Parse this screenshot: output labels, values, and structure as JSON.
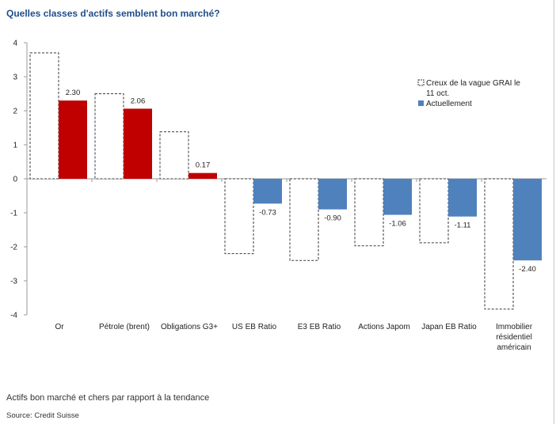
{
  "title": "Quelles classes d'actifs semblent bon marché?",
  "caption": "Actifs bon marché et chers par rapport à la tendance",
  "source": "Source: Credit Suisse",
  "chart_data": {
    "type": "bar",
    "categories": [
      "Or",
      "Pétrole (brent)",
      "Obligations G3+",
      "US EB Ratio",
      "E3 EB Ratio",
      "Actions Japom",
      "Japan EB Ratio",
      "Immobilier résidentiel américain"
    ],
    "series": [
      {
        "name": "Creux de la vague GRAI le 11 oct.",
        "style": "dashed-outline",
        "values": [
          3.7,
          2.5,
          1.38,
          -2.2,
          -2.4,
          -1.97,
          -1.88,
          -3.83
        ]
      },
      {
        "name": "Actuellement",
        "values": [
          2.3,
          2.06,
          0.17,
          -0.73,
          -0.9,
          -1.06,
          -1.11,
          -2.4
        ],
        "labels": [
          "2.30",
          "2.06",
          "0.17",
          "-0.73",
          "-0.90",
          "-1.06",
          "-1.11",
          "-2.40"
        ]
      }
    ],
    "positive_color": "#c00000",
    "negative_color": "#4f81bd",
    "ylim": [
      -4,
      4
    ],
    "yticks": [
      4,
      3,
      2,
      1,
      0,
      -1,
      -2,
      -3,
      -4
    ],
    "ytick_labels": [
      "4",
      "3",
      "2",
      "1",
      "0",
      "-1",
      "-2",
      "-3",
      "-4"
    ],
    "xlabel": "",
    "ylabel": "",
    "grid": false,
    "legend": {
      "position": "right",
      "entries": [
        {
          "label_lines": [
            "Creux de la vague GRAI le",
            "11 oct."
          ],
          "swatch": "dashed"
        },
        {
          "label_lines": [
            "Actuellement"
          ],
          "swatch": "solid",
          "color": "#4f81bd"
        }
      ]
    }
  }
}
